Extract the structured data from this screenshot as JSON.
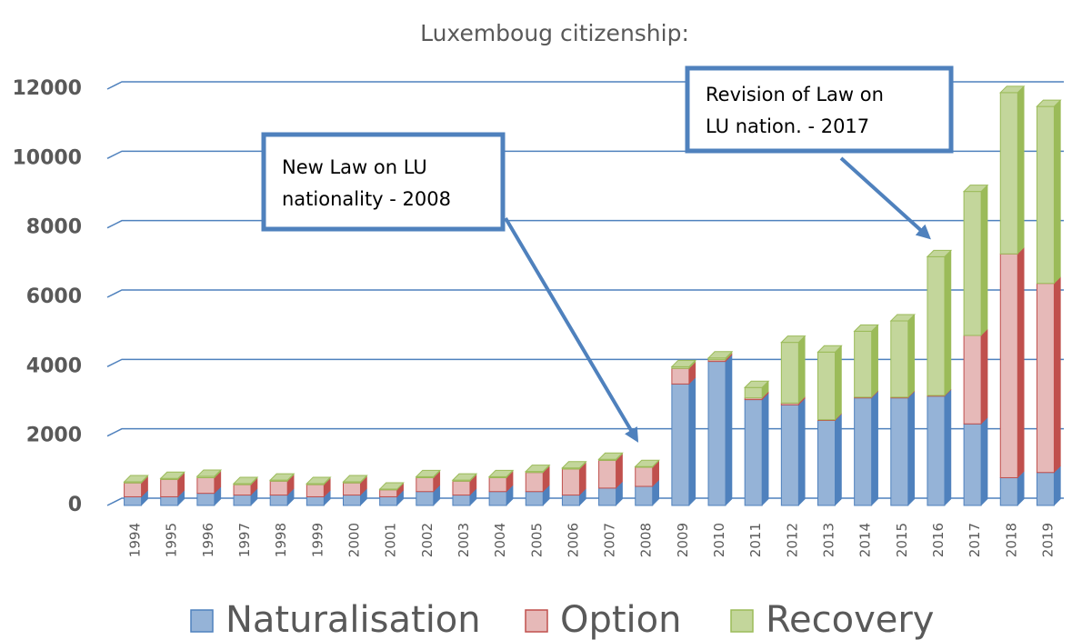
{
  "chart_data": {
    "type": "stacked_bar",
    "title": "Luxemboug citizenship:",
    "categories": [
      "1994",
      "1995",
      "1996",
      "1997",
      "1998",
      "1999",
      "2000",
      "2001",
      "2002",
      "2003",
      "2004",
      "2005",
      "2006",
      "2007",
      "2008",
      "2009",
      "2010",
      "2011",
      "2012",
      "2013",
      "2014",
      "2015",
      "2016",
      "2017",
      "2018",
      "2019"
    ],
    "series": [
      {
        "name": "Naturalisation",
        "color": "#95b3d7",
        "edge": "#4f81bd",
        "values": [
          250,
          250,
          350,
          300,
          300,
          250,
          300,
          250,
          400,
          300,
          400,
          400,
          300,
          500,
          550,
          3500,
          4150,
          3050,
          2900,
          2450,
          3100,
          3100,
          3150,
          2350,
          800,
          950
        ]
      },
      {
        "name": "Option",
        "color": "#e6b9b8",
        "edge": "#c0504d",
        "values": [
          400,
          500,
          450,
          300,
          400,
          350,
          350,
          200,
          400,
          400,
          400,
          550,
          750,
          800,
          550,
          450,
          50,
          50,
          50,
          20,
          20,
          20,
          20,
          2550,
          6450,
          5450
        ]
      },
      {
        "name": "Recovery",
        "color": "#c3d69b",
        "edge": "#9bbb59",
        "values": [
          30,
          30,
          40,
          30,
          30,
          30,
          30,
          20,
          30,
          30,
          30,
          30,
          30,
          30,
          20,
          50,
          50,
          300,
          1750,
          1950,
          1900,
          2200,
          4000,
          4150,
          4650,
          5100
        ]
      }
    ],
    "ylim": [
      0,
      12000
    ],
    "yticks": [
      0,
      2000,
      4000,
      6000,
      8000,
      10000,
      12000
    ],
    "grid": true,
    "legend": "bottom",
    "annotations": [
      {
        "lines": [
          "New Law on LU",
          "nationality - 2008"
        ]
      },
      {
        "lines": [
          "Revision of Law on",
          "LU nation. - 2017"
        ]
      }
    ]
  }
}
